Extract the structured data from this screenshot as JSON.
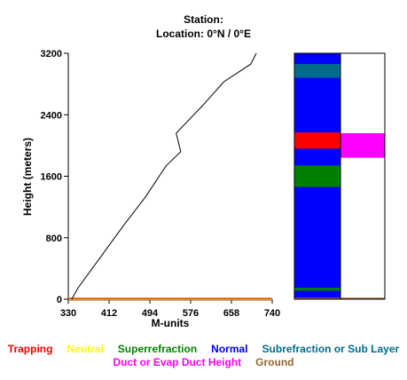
{
  "header": {
    "station_line": "Station:",
    "location_line": "Location:   0°N /   0°E"
  },
  "chart_data": {
    "type": "line",
    "xlabel": "M-units",
    "ylabel": "Height (meters)",
    "xlim": [
      330,
      740
    ],
    "ylim": [
      0,
      3200
    ],
    "x_ticks": [
      "330",
      "412",
      "494",
      "576",
      "658",
      "740"
    ],
    "y_ticks": [
      "0",
      "800",
      "1600",
      "2400",
      "3200"
    ],
    "series": [
      {
        "points": [
          {
            "x": 337,
            "y": 0
          },
          {
            "x": 350,
            "y": 150
          },
          {
            "x": 395,
            "y": 550
          },
          {
            "x": 440,
            "y": 950
          },
          {
            "x": 485,
            "y": 1330
          },
          {
            "x": 526,
            "y": 1730
          },
          {
            "x": 556,
            "y": 1920
          },
          {
            "x": 547,
            "y": 2160
          },
          {
            "x": 600,
            "y": 2520
          },
          {
            "x": 643,
            "y": 2830
          },
          {
            "x": 697,
            "y": 3060
          },
          {
            "x": 708,
            "y": 3200
          }
        ]
      }
    ],
    "ground_line": {
      "y": 0,
      "colors": [
        "#cc0000",
        "#ffcc00",
        "#996633"
      ]
    }
  },
  "layer_bar": {
    "height_range": [
      0,
      3200
    ],
    "background_color": "#0000ff",
    "left_column": [
      {
        "from": 2880,
        "to": 3060,
        "color": "#006b8a"
      },
      {
        "from": 1960,
        "to": 2170,
        "color": "#ff0000"
      },
      {
        "from": 1460,
        "to": 1740,
        "color": "#008000"
      },
      {
        "from": 110,
        "to": 150,
        "color": "#008000"
      },
      {
        "from": 0,
        "to": 20,
        "color": "#9a6b3a"
      }
    ],
    "right_column": [
      {
        "from": 1840,
        "to": 2160,
        "color": "#ff00ff"
      },
      {
        "from": 0,
        "to": 20,
        "color": "#9a6b3a"
      }
    ]
  },
  "legend": {
    "row1": [
      {
        "label": "Trapping",
        "color": "#ff0000"
      },
      {
        "label": "Neutral",
        "color": "#ffff00"
      },
      {
        "label": "Superrefraction",
        "color": "#008000"
      },
      {
        "label": "Normal",
        "color": "#0000ff"
      },
      {
        "label": "Subrefraction or Sub Layer",
        "color": "#006b8a"
      }
    ],
    "row2": [
      {
        "label": "Duct or Evap Duct Height",
        "color": "#ff00ff"
      },
      {
        "label": "Ground",
        "color": "#996633"
      }
    ]
  }
}
